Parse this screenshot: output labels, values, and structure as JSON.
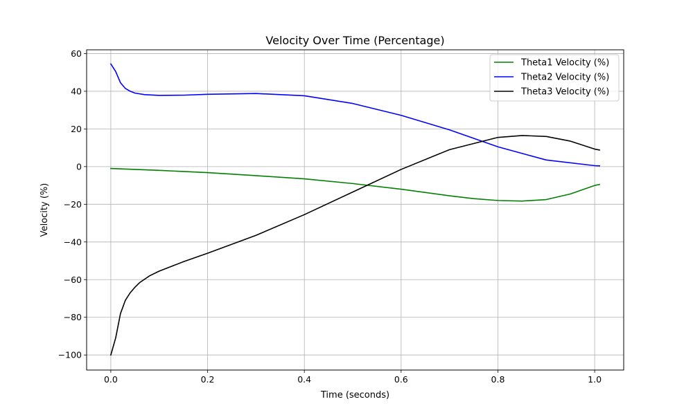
{
  "chart_data": {
    "type": "line",
    "title": "Velocity Over Time (Percentage)",
    "xlabel": "Time (seconds)",
    "ylabel": "Velocity (%)",
    "xlim": [
      -0.05,
      1.06
    ],
    "ylim": [
      -108,
      62
    ],
    "xticks": [
      0.0,
      0.2,
      0.4,
      0.6,
      0.8,
      1.0
    ],
    "xtick_labels": [
      "0.0",
      "0.2",
      "0.4",
      "0.6",
      "0.8",
      "1.0"
    ],
    "yticks": [
      -100,
      -80,
      -60,
      -40,
      -20,
      0,
      20,
      40,
      60
    ],
    "ytick_labels": [
      "−100",
      "−80",
      "−60",
      "−40",
      "−20",
      "0",
      "20",
      "40",
      "60"
    ],
    "grid": true,
    "legend_position": "top-right",
    "series": [
      {
        "name": "Theta1 Velocity (%)",
        "color": "#008000",
        "x": [
          0,
          0.1,
          0.2,
          0.3,
          0.4,
          0.5,
          0.6,
          0.7,
          0.75,
          0.8,
          0.85,
          0.9,
          0.95,
          1.0,
          1.01
        ],
        "y": [
          -1,
          -2,
          -3.2,
          -4.8,
          -6.5,
          -9,
          -12,
          -15.5,
          -17,
          -18,
          -18.3,
          -17.5,
          -14.5,
          -10,
          -9.5
        ]
      },
      {
        "name": "Theta2 Velocity (%)",
        "color": "#0000ff",
        "x": [
          0,
          0.01,
          0.02,
          0.03,
          0.04,
          0.05,
          0.07,
          0.1,
          0.15,
          0.2,
          0.3,
          0.4,
          0.5,
          0.6,
          0.7,
          0.8,
          0.9,
          1.0,
          1.01
        ],
        "y": [
          54.5,
          50.5,
          44.5,
          41.5,
          40,
          39,
          38.2,
          37.8,
          37.9,
          38.4,
          38.8,
          37.6,
          33.5,
          27.2,
          19.5,
          10.5,
          3.5,
          0.5,
          0.4
        ]
      },
      {
        "name": "Theta3 Velocity (%)",
        "color": "#000000",
        "x": [
          0,
          0.01,
          0.02,
          0.03,
          0.04,
          0.05,
          0.06,
          0.08,
          0.1,
          0.15,
          0.2,
          0.3,
          0.4,
          0.5,
          0.6,
          0.7,
          0.8,
          0.85,
          0.9,
          0.95,
          1.0,
          1.01
        ],
        "y": [
          -100,
          -91,
          -78,
          -71,
          -67,
          -64,
          -61.5,
          -58,
          -55.5,
          -50.5,
          -46,
          -36.5,
          -25.5,
          -13.5,
          -1.5,
          9,
          15.5,
          16.5,
          16,
          13.5,
          9.3,
          8.8
        ]
      }
    ]
  }
}
